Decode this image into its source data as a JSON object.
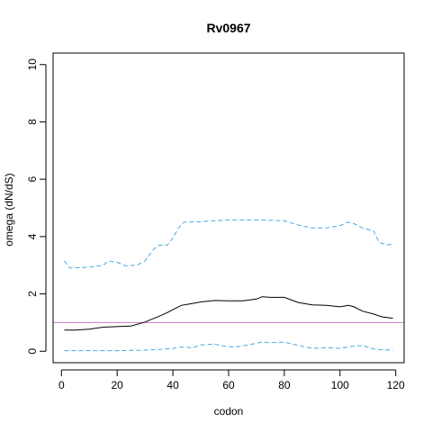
{
  "chart_data": {
    "type": "line",
    "title": "Rv0967",
    "xlabel": "codon",
    "ylabel": "omega (dN/dS)",
    "xlim": [
      -3,
      123
    ],
    "ylim": [
      -0.4,
      10.4
    ],
    "xticks": [
      "0",
      "20",
      "40",
      "60",
      "80",
      "100",
      "120"
    ],
    "yticks": [
      "0",
      "2",
      "4",
      "6",
      "8",
      "10"
    ],
    "reference_line": {
      "y": 1,
      "color": "#c77cc7"
    },
    "series": [
      {
        "role": "estimate",
        "color": "#000000",
        "dash": "solid",
        "points": [
          [
            1,
            0.74
          ],
          [
            5,
            0.74
          ],
          [
            10,
            0.77
          ],
          [
            15,
            0.84
          ],
          [
            20,
            0.86
          ],
          [
            25,
            0.88
          ],
          [
            30,
            1.02
          ],
          [
            35,
            1.22
          ],
          [
            38,
            1.35
          ],
          [
            40,
            1.45
          ],
          [
            43,
            1.6
          ],
          [
            46,
            1.65
          ],
          [
            50,
            1.72
          ],
          [
            55,
            1.77
          ],
          [
            60,
            1.76
          ],
          [
            65,
            1.76
          ],
          [
            70,
            1.82
          ],
          [
            72,
            1.9
          ],
          [
            75,
            1.88
          ],
          [
            80,
            1.88
          ],
          [
            85,
            1.7
          ],
          [
            90,
            1.62
          ],
          [
            95,
            1.6
          ],
          [
            100,
            1.55
          ],
          [
            103,
            1.6
          ],
          [
            105,
            1.55
          ],
          [
            108,
            1.4
          ],
          [
            112,
            1.3
          ],
          [
            115,
            1.2
          ],
          [
            119,
            1.15
          ]
        ]
      },
      {
        "role": "upper-bound",
        "color": "#4aa8e0",
        "dash": "dashed",
        "points": [
          [
            1,
            3.15
          ],
          [
            3,
            2.9
          ],
          [
            10,
            2.93
          ],
          [
            15,
            3.0
          ],
          [
            17,
            3.15
          ],
          [
            20,
            3.1
          ],
          [
            23,
            2.98
          ],
          [
            27,
            3.0
          ],
          [
            30,
            3.15
          ],
          [
            33,
            3.55
          ],
          [
            35,
            3.7
          ],
          [
            38,
            3.7
          ],
          [
            40,
            3.95
          ],
          [
            42,
            4.3
          ],
          [
            44,
            4.5
          ],
          [
            50,
            4.52
          ],
          [
            55,
            4.55
          ],
          [
            60,
            4.58
          ],
          [
            70,
            4.58
          ],
          [
            80,
            4.55
          ],
          [
            85,
            4.4
          ],
          [
            90,
            4.3
          ],
          [
            95,
            4.3
          ],
          [
            100,
            4.38
          ],
          [
            103,
            4.5
          ],
          [
            105,
            4.45
          ],
          [
            108,
            4.3
          ],
          [
            112,
            4.2
          ],
          [
            114,
            3.8
          ],
          [
            117,
            3.7
          ],
          [
            119,
            3.75
          ]
        ]
      },
      {
        "role": "lower-bound",
        "color": "#4aa8e0",
        "dash": "dashed",
        "points": [
          [
            1,
            0.02
          ],
          [
            10,
            0.02
          ],
          [
            20,
            0.02
          ],
          [
            30,
            0.04
          ],
          [
            35,
            0.06
          ],
          [
            40,
            0.1
          ],
          [
            43,
            0.15
          ],
          [
            47,
            0.12
          ],
          [
            50,
            0.22
          ],
          [
            55,
            0.25
          ],
          [
            58,
            0.18
          ],
          [
            62,
            0.15
          ],
          [
            66,
            0.2
          ],
          [
            70,
            0.28
          ],
          [
            72,
            0.32
          ],
          [
            75,
            0.3
          ],
          [
            80,
            0.32
          ],
          [
            85,
            0.2
          ],
          [
            90,
            0.1
          ],
          [
            95,
            0.12
          ],
          [
            100,
            0.1
          ],
          [
            105,
            0.18
          ],
          [
            108,
            0.2
          ],
          [
            112,
            0.08
          ],
          [
            115,
            0.05
          ],
          [
            119,
            0.04
          ]
        ]
      }
    ]
  }
}
